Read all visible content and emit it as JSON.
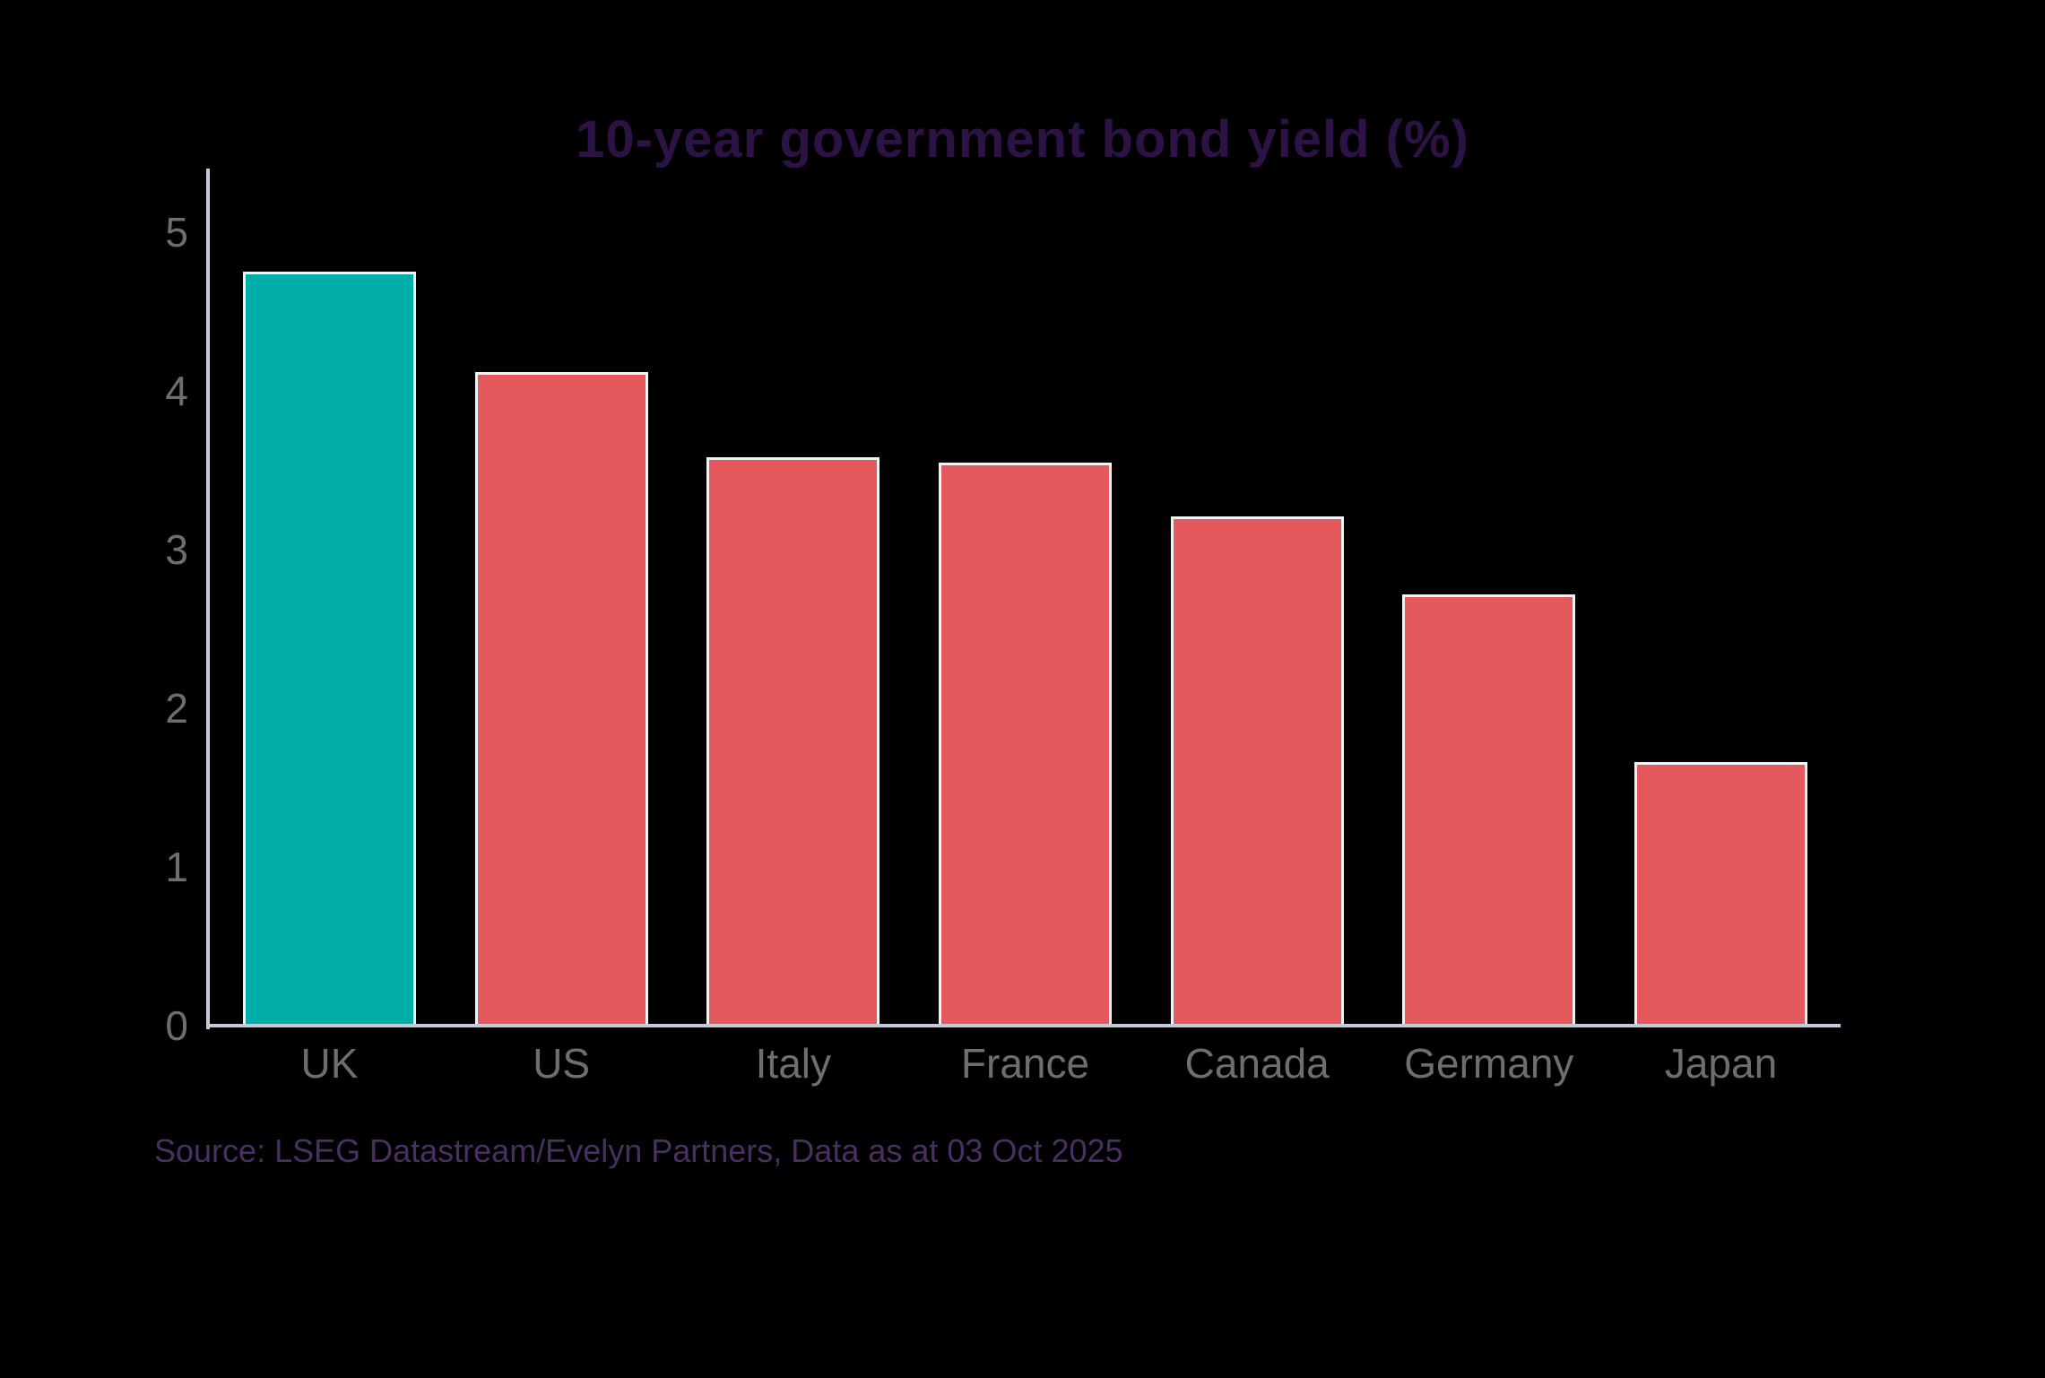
{
  "chart_data": {
    "type": "bar",
    "title": "10-year government bond yield (%)",
    "categories": [
      "UK",
      "US",
      "Italy",
      "France",
      "Canada",
      "Germany",
      "Japan"
    ],
    "values": [
      4.75,
      4.12,
      3.58,
      3.55,
      3.21,
      2.72,
      1.66
    ],
    "highlighted_category": "UK",
    "xlabel": "",
    "ylabel": "",
    "ylim": [
      0,
      5.4
    ],
    "yticks": [
      0,
      1,
      2,
      3,
      4,
      5
    ],
    "grid": false,
    "legend": false,
    "colors": {
      "background": "#000000",
      "highlight_bar": "#00ADA8",
      "default_bar": "#E4595C",
      "bar_border": "#F0F3F6",
      "axis_line": "#C3CBD7",
      "tick_label": "#6E6E6E",
      "title": "#2D1245",
      "source_text": "#4A2F63"
    },
    "source": "Source: LSEG Datastream/Evelyn Partners, Data as at 03 Oct 2025"
  }
}
